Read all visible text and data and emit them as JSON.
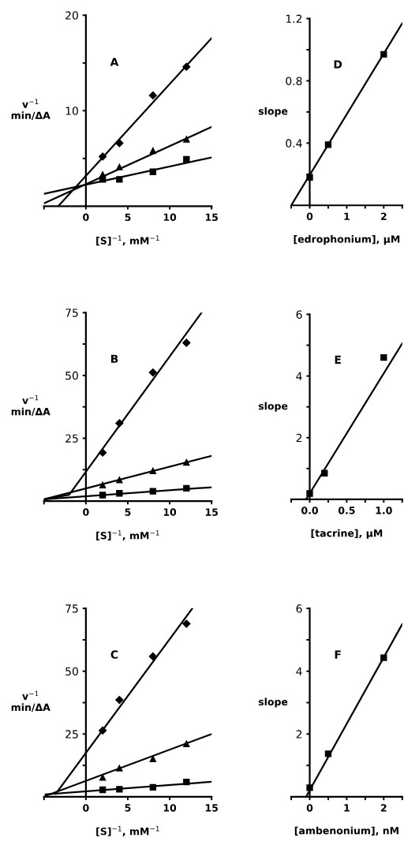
{
  "chart_data": [
    {
      "type": "scatter",
      "title": "A",
      "xlabel": "[S]$^{−1}$, mM$^{−1}$",
      "ylabel": "v$^{−1}$\nmin/ΔA",
      "xlim": [
        -5,
        15
      ],
      "ylim": [
        0,
        20
      ],
      "xticks": [
        {
          "value": -5,
          "label": null
        },
        0,
        5,
        10,
        15
      ],
      "yticks": [
        {
          "value": 5,
          "label": null
        },
        10,
        {
          "value": 15,
          "label": null
        },
        20
      ],
      "series": [
        {
          "marker": "diamond",
          "color": "#000000",
          "x": [
            2,
            4,
            8,
            12
          ],
          "values": [
            5.2,
            6.6,
            11.6,
            14.6
          ]
        },
        {
          "marker": "triangle",
          "color": "#000000",
          "x": [
            2,
            4,
            8,
            12
          ],
          "values": [
            3.3,
            4.1,
            5.8,
            7.0
          ]
        },
        {
          "marker": "square",
          "color": "#000000",
          "x": [
            2,
            4,
            8,
            12
          ],
          "values": [
            2.8,
            2.8,
            3.6,
            4.9
          ]
        },
        {
          "type": "line",
          "color": "#000000",
          "x": [
            -3.3,
            15
          ],
          "values": [
            0,
            17.6
          ]
        },
        {
          "type": "line",
          "color": "#000000",
          "x": [
            -5,
            15
          ],
          "values": [
            0.3,
            8.3
          ]
        },
        {
          "type": "line",
          "color": "#000000",
          "x": [
            -5,
            15
          ],
          "values": [
            1.3,
            5.1
          ]
        }
      ]
    },
    {
      "type": "scatter",
      "title": "D",
      "xlabel": "[edrophonium], μM",
      "ylabel": "slope",
      "xlim": [
        -0.5,
        2.5
      ],
      "ylim": [
        0,
        1.2
      ],
      "xticks": [
        {
          "value": -0.5,
          "label": null
        },
        0,
        {
          "value": 0.5,
          "label": null
        },
        1,
        {
          "value": 1.5,
          "label": null
        },
        2,
        {
          "value": 2.5,
          "label": null
        }
      ],
      "yticks": [
        {
          "value": 0.2,
          "label": null
        },
        0.4,
        {
          "value": 0.6,
          "label": null
        },
        0.8,
        {
          "value": 1.0,
          "label": null
        },
        1.2
      ],
      "series": [
        {
          "marker": "square",
          "color": "#000000",
          "x": [
            0,
            0.5,
            2
          ],
          "values": [
            0.18,
            0.39,
            0.97
          ]
        },
        {
          "type": "line",
          "color": "#000000",
          "x": [
            -0.5,
            2.5
          ],
          "values": [
            0,
            1.17
          ]
        }
      ]
    },
    {
      "type": "scatter",
      "title": "B",
      "xlabel": "[S]$^{−1}$, mM$^{−1}$",
      "ylabel": "v$^{−1}$\nmin/ΔA",
      "xlim": [
        -5,
        15
      ],
      "ylim": [
        0,
        75
      ],
      "xticks": [
        {
          "value": -5,
          "label": null
        },
        0,
        5,
        10,
        15
      ],
      "yticks": [
        {
          "value": 12.5,
          "label": null
        },
        25,
        {
          "value": 37.5,
          "label": null
        },
        50,
        {
          "value": 62.5,
          "label": null
        },
        75
      ],
      "series": [
        {
          "marker": "diamond",
          "color": "#000000",
          "x": [
            2,
            4,
            8,
            12
          ],
          "values": [
            19.3,
            31,
            51.2,
            63
          ]
        },
        {
          "marker": "triangle",
          "color": "#000000",
          "x": [
            2,
            4,
            8,
            12
          ],
          "values": [
            6.4,
            8.4,
            12,
            15.4
          ]
        },
        {
          "marker": "square",
          "color": "#000000",
          "x": [
            2,
            4,
            8,
            12
          ],
          "values": [
            2.4,
            3.1,
            3.9,
            5.1
          ]
        },
        {
          "type": "line",
          "color": "#000000",
          "x": [
            -5,
            -2,
            13.8
          ],
          "values": [
            0.7,
            2.5,
            75
          ]
        },
        {
          "type": "line",
          "color": "#000000",
          "x": [
            -5,
            15
          ],
          "values": [
            0.7,
            18
          ]
        },
        {
          "type": "line",
          "color": "#000000",
          "x": [
            -5,
            15
          ],
          "values": [
            0.7,
            5.5
          ]
        }
      ]
    },
    {
      "type": "scatter",
      "title": "E",
      "xlabel": "[tacrine], μM",
      "ylabel": "slope",
      "xlim": [
        -0.25,
        1.25
      ],
      "ylim": [
        0,
        6
      ],
      "xticks": [
        {
          "value": -0.25,
          "label": null
        },
        {
          "value": 0,
          "label": "0.0"
        },
        {
          "value": 0.25,
          "label": null
        },
        0.5,
        {
          "value": 0.75,
          "label": null
        },
        {
          "value": 1,
          "label": "1.0"
        },
        {
          "value": 1.25,
          "label": null
        }
      ],
      "yticks": [
        {
          "value": 1,
          "label": null
        },
        2,
        {
          "value": 3,
          "label": null
        },
        4,
        {
          "value": 5,
          "label": null
        },
        6
      ],
      "series": [
        {
          "marker": "square",
          "color": "#000000",
          "x": [
            0,
            0.2,
            1.0
          ],
          "values": [
            0.19,
            0.85,
            4.6
          ]
        },
        {
          "type": "line",
          "color": "#000000",
          "x": [
            -0.05,
            1.25
          ],
          "values": [
            0,
            5.06
          ]
        }
      ]
    },
    {
      "type": "scatter",
      "title": "C",
      "xlabel": "[S]$^{−1}$, mM$^{−1}$",
      "ylabel": "v$^{−1}$\nmin/ΔA",
      "xlim": [
        -5,
        15
      ],
      "ylim": [
        0,
        75
      ],
      "xticks": [
        {
          "value": -5,
          "label": null
        },
        0,
        5,
        10,
        15
      ],
      "yticks": [
        {
          "value": 12.5,
          "label": null
        },
        25,
        {
          "value": 37.5,
          "label": null
        },
        50,
        {
          "value": 62.5,
          "label": null
        },
        75
      ],
      "series": [
        {
          "marker": "diamond",
          "color": "#000000",
          "x": [
            2,
            4,
            8,
            12
          ],
          "values": [
            26.4,
            38.6,
            55.9,
            68.9
          ]
        },
        {
          "marker": "triangle",
          "color": "#000000",
          "x": [
            2,
            4,
            8,
            12
          ],
          "values": [
            7.7,
            11.4,
            15.1,
            21.1
          ]
        },
        {
          "marker": "square",
          "color": "#000000",
          "x": [
            2,
            4,
            8,
            12
          ],
          "values": [
            2.8,
            3.0,
            3.8,
            5.9
          ]
        },
        {
          "type": "line",
          "color": "#000000",
          "x": [
            -3.6,
            12.7
          ],
          "values": [
            1.2,
            75
          ]
        },
        {
          "type": "line",
          "color": "#000000",
          "x": [
            -4.8,
            15
          ],
          "values": [
            0.4,
            25
          ]
        },
        {
          "type": "line",
          "color": "#000000",
          "x": [
            -4.8,
            15
          ],
          "values": [
            1.0,
            6.0
          ]
        }
      ]
    },
    {
      "type": "scatter",
      "title": "F",
      "xlabel": "[ambenonium], nM",
      "ylabel": "slope",
      "xlim": [
        -0.5,
        2.5
      ],
      "ylim": [
        0,
        6
      ],
      "xticks": [
        {
          "value": -0.5,
          "label": null
        },
        0,
        {
          "value": 0.5,
          "label": null
        },
        1,
        {
          "value": 1.5,
          "label": null
        },
        2,
        {
          "value": 2.5,
          "label": null
        }
      ],
      "yticks": [
        {
          "value": 1,
          "label": null
        },
        2,
        {
          "value": 3,
          "label": null
        },
        4,
        {
          "value": 5,
          "label": null
        },
        6
      ],
      "series": [
        {
          "marker": "square",
          "color": "#000000",
          "x": [
            0,
            0.5,
            2
          ],
          "values": [
            0.29,
            1.37,
            4.43
          ]
        },
        {
          "type": "line",
          "color": "#000000",
          "x": [
            -0.1,
            2.5
          ],
          "values": [
            0,
            5.5
          ]
        }
      ]
    }
  ]
}
